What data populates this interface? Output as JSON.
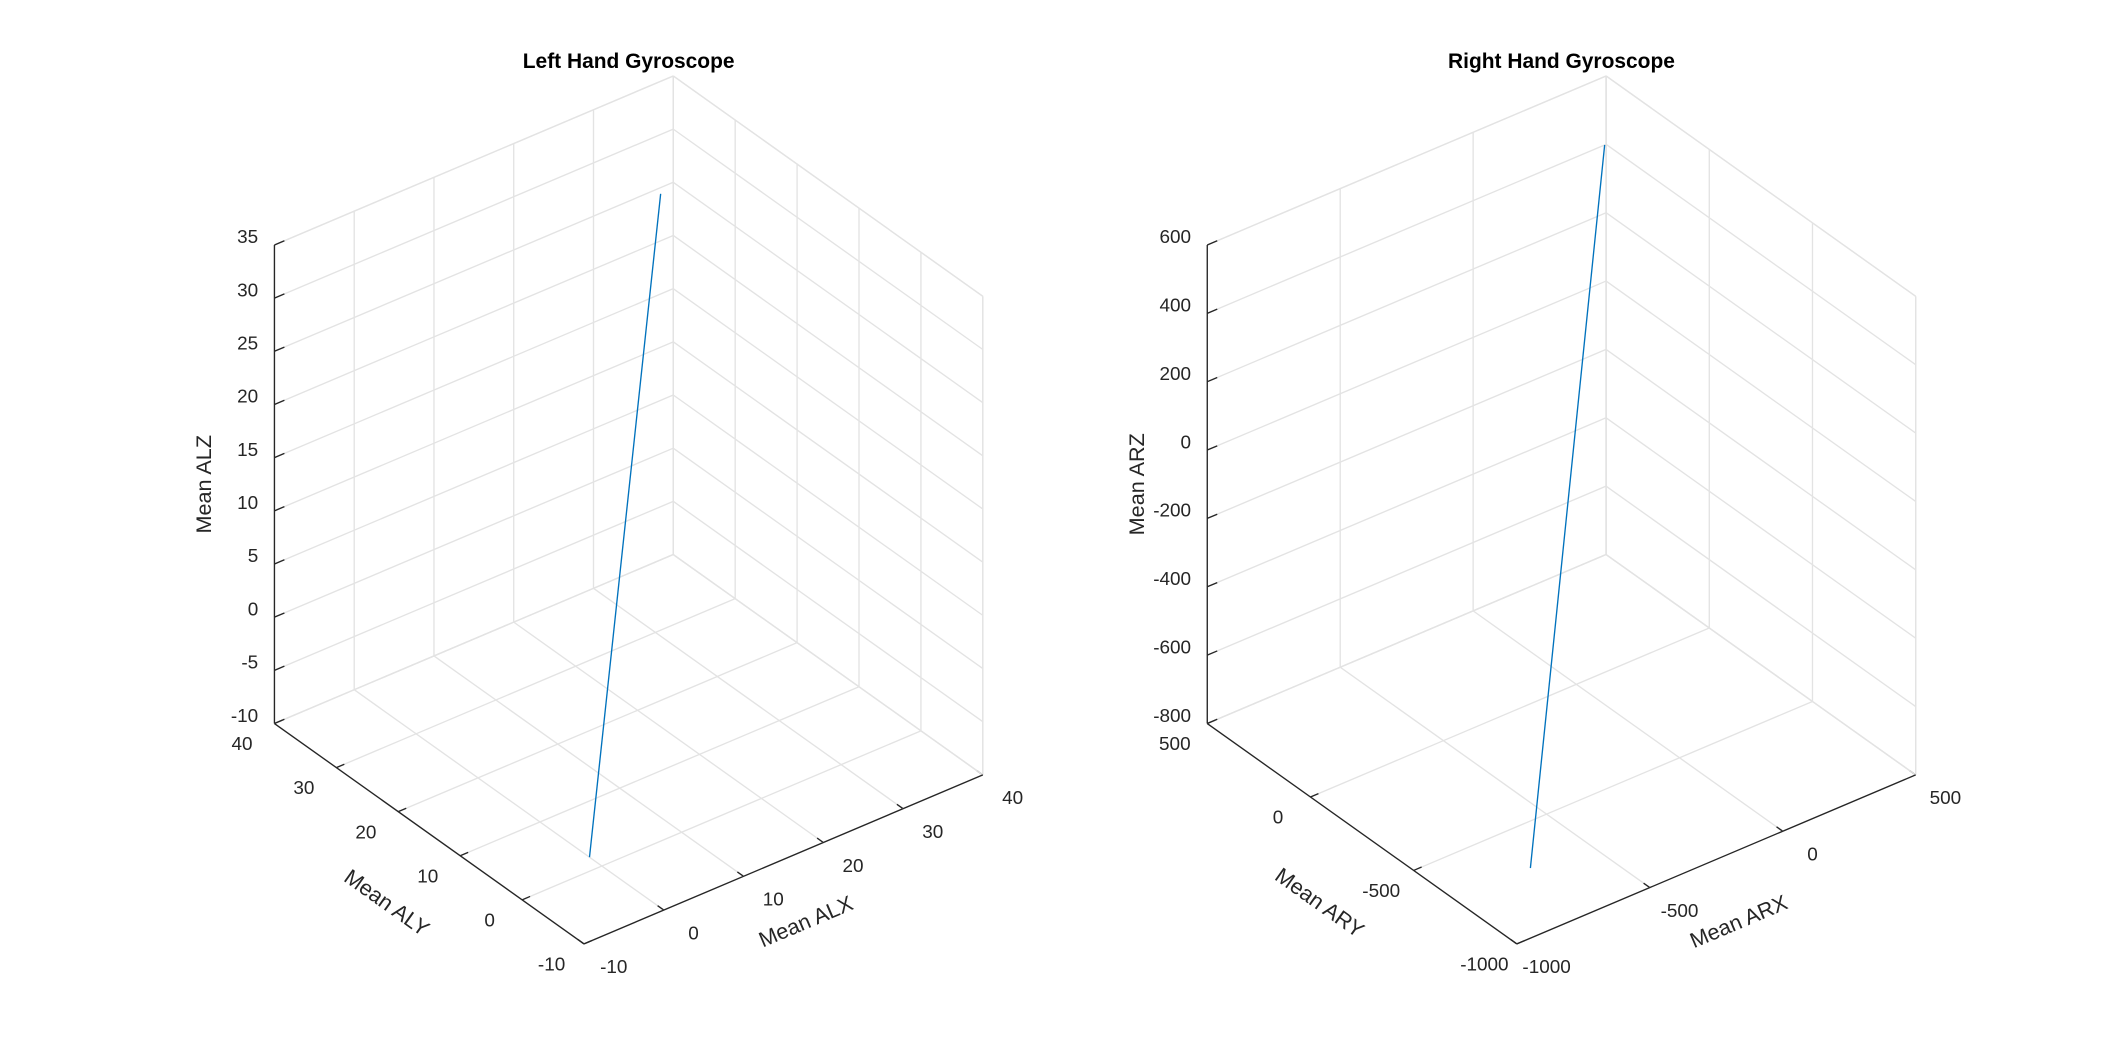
{
  "chart_data": [
    {
      "type": "line3d",
      "title": "Left Hand Gyroscope",
      "xlabel": "Mean ALX",
      "ylabel": "Mean ALY",
      "zlabel": "Mean ALZ",
      "xlim": [
        -10,
        40
      ],
      "ylim": [
        -10,
        40
      ],
      "zlim": [
        -10,
        35
      ],
      "xticks": [
        -10,
        0,
        10,
        20,
        30,
        40
      ],
      "yticks": [
        -10,
        0,
        10,
        20,
        30,
        40
      ],
      "zticks": [
        -10,
        -5,
        0,
        5,
        10,
        15,
        20,
        25,
        30,
        35
      ],
      "grid": true,
      "series": [
        {
          "color": "#0072bd",
          "x": [
            0,
            26
          ],
          "y": [
            2,
            24
          ],
          "z": [
            -10,
            35
          ]
        }
      ]
    },
    {
      "type": "line3d",
      "title": "Right Hand Gyroscope",
      "xlabel": "Mean ARX",
      "ylabel": "Mean ARY",
      "zlabel": "Mean ARZ",
      "xlim": [
        -1000,
        500
      ],
      "ylim": [
        -1000,
        500
      ],
      "zlim": [
        -800,
        600
      ],
      "xticks": [
        -1000,
        -500,
        0,
        500
      ],
      "yticks": [
        -1000,
        -500,
        0,
        500
      ],
      "zticks": [
        -800,
        -600,
        -400,
        -200,
        0,
        200,
        400,
        600
      ],
      "grid": true,
      "series": [
        {
          "color": "#0072bd",
          "x": [
            -717,
            268
          ],
          "y": [
            -701,
            208
          ],
          "z": [
            -800,
            600
          ]
        }
      ]
    }
  ]
}
